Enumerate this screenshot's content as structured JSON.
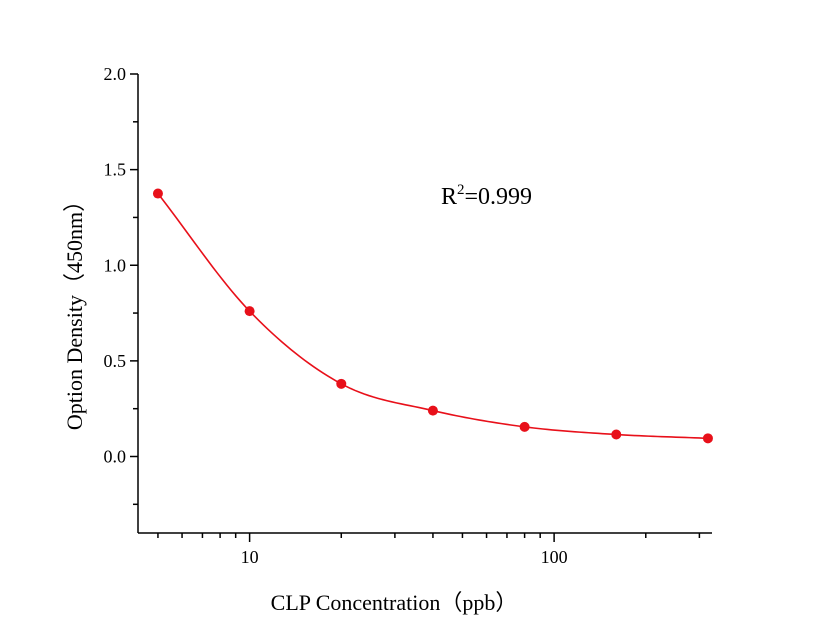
{
  "chart_data": {
    "type": "scatter",
    "title": "",
    "xlabel": "CLP  Concentration（ppb）",
    "ylabel": "Option Density（450nm）",
    "xscale": "log",
    "xlim": [
      4.3,
      330
    ],
    "ylim": [
      -0.4,
      2.0
    ],
    "grid": false,
    "x_tick_labels": [
      "10",
      "100"
    ],
    "y_tick_labels": [
      "2.0",
      "1.5",
      "1.0",
      "0.5",
      "0.0"
    ],
    "y_ticks": [
      2.0,
      1.5,
      1.0,
      0.5,
      0.0
    ],
    "x_major_ticks": [
      10,
      100
    ],
    "x_minor_ticks": [
      5,
      6,
      7,
      8,
      9,
      20,
      30,
      40,
      50,
      60,
      70,
      80,
      90,
      200,
      300
    ],
    "y_minor_ticks": [
      1.75,
      1.25,
      0.75,
      0.25,
      -0.25
    ],
    "annotation": {
      "text": "R",
      "superscript": "2",
      "suffix": "=0.999"
    },
    "series": [
      {
        "color": "#e8101a",
        "points": [
          {
            "x": 5,
            "y": 1.375
          },
          {
            "x": 10,
            "y": 0.76
          },
          {
            "x": 20,
            "y": 0.38
          },
          {
            "x": 40,
            "y": 0.24
          },
          {
            "x": 80,
            "y": 0.155
          },
          {
            "x": 160,
            "y": 0.115
          },
          {
            "x": 320,
            "y": 0.095
          }
        ]
      }
    ]
  }
}
